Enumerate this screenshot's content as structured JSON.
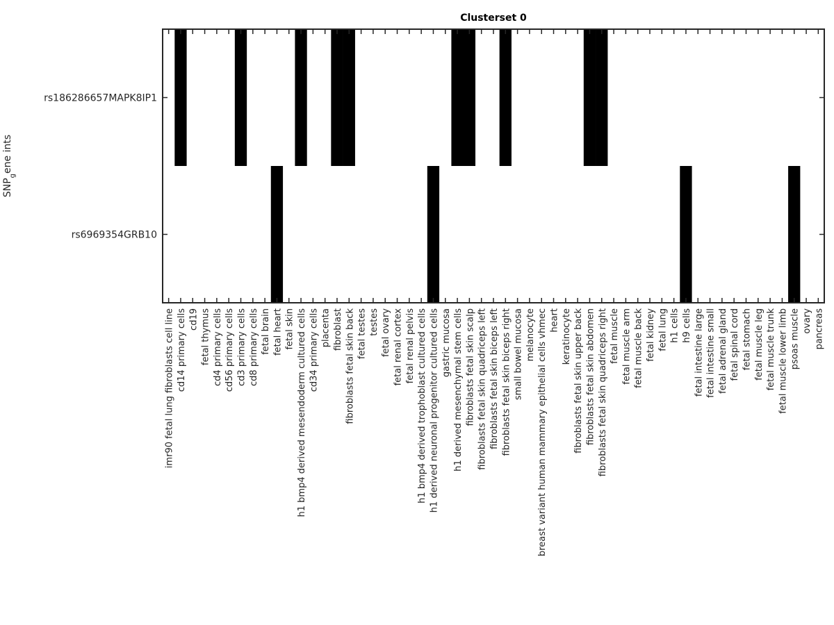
{
  "chart_data": {
    "type": "heatmap",
    "title": "Clusterset 0",
    "xlabel": "",
    "ylabel": "SNP_gene ints",
    "ylabel_parts": {
      "main": "SNP",
      "subscript": "g",
      "rest": "ene ints"
    },
    "colormap": {
      "0": "#ffffff",
      "1": "#000000"
    },
    "rows": [
      "rs186286657MAPK8IP1",
      "rs6969354GRB10"
    ],
    "columns": [
      "imr90 fetal lung fibroblasts cell line",
      "cd14 primary cells",
      "cd19",
      "fetal thymus",
      "cd4 primary cells",
      "cd56 primary cells",
      "cd3 primary cells",
      "cd8 primary cells",
      "fetal brain",
      "fetal heart",
      "fetal skin",
      "h1 bmp4 derived mesendoderm cultured cells",
      "cd34 primary cells",
      "placenta",
      "fibroblast",
      "fibroblasts fetal skin back",
      "fetal testes",
      "testes",
      "fetal ovary",
      "fetal renal cortex",
      "fetal renal pelvis",
      "h1 bmp4 derived trophoblast cultured cells",
      "h1 derived neuronal progenitor cultured cells",
      "gastric mucosa",
      "h1 derived mesenchymal stem cells",
      "fibroblasts fetal skin scalp",
      "fibroblasts fetal skin quadriceps left",
      "fibroblasts fetal skin biceps left",
      "fibroblasts fetal skin biceps right",
      "small bowel mucosa",
      "melanocyte",
      "breast variant human mammary epithelial cells vhmec",
      "heart",
      "keratinocyte",
      "fibroblasts fetal skin upper back",
      "fibroblasts fetal skin abdomen",
      "fibroblasts fetal skin quadriceps right",
      "fetal muscle",
      "fetal muscle arm",
      "fetal muscle back",
      "fetal kidney",
      "fetal lung",
      "h1 cells",
      "h9 cells",
      "fetal intestine large",
      "fetal intestine small",
      "fetal adrenal gland",
      "fetal spinal cord",
      "fetal stomach",
      "fetal muscle leg",
      "fetal muscle trunk",
      "fetal muscle lower limb",
      "psoas muscle",
      "ovary",
      "pancreas"
    ],
    "values": [
      [
        0,
        1,
        0,
        0,
        0,
        0,
        1,
        0,
        0,
        0,
        0,
        1,
        0,
        0,
        1,
        1,
        0,
        0,
        0,
        0,
        0,
        0,
        0,
        0,
        1,
        1,
        0,
        0,
        1,
        0,
        0,
        0,
        0,
        0,
        0,
        1,
        1,
        0,
        0,
        0,
        0,
        0,
        0,
        0,
        0,
        0,
        0,
        0,
        0,
        0,
        0,
        0,
        0,
        0,
        0
      ],
      [
        0,
        0,
        0,
        0,
        0,
        0,
        0,
        0,
        0,
        1,
        0,
        0,
        0,
        0,
        0,
        0,
        0,
        0,
        0,
        0,
        0,
        0,
        1,
        0,
        0,
        0,
        0,
        0,
        0,
        0,
        0,
        0,
        0,
        0,
        0,
        0,
        0,
        0,
        0,
        0,
        0,
        0,
        0,
        1,
        0,
        0,
        0,
        0,
        0,
        0,
        0,
        0,
        1,
        0,
        0
      ]
    ],
    "grid": false,
    "legend": "none"
  }
}
